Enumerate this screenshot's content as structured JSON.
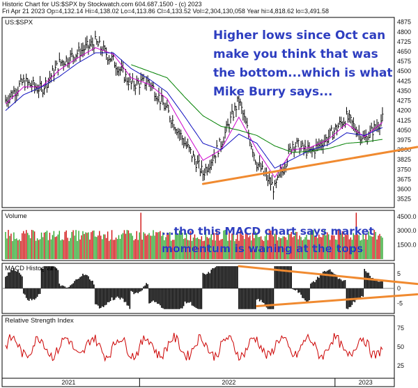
{
  "header": {
    "line1": "Historic Chart for US:$SPX by Stockwatch.com 604.687.1500 - (c) 2023",
    "line2": "Fri Apr 21 2023   Op=4,132.14   Hi=4,138.02   Lo=4,113.86   Cl=4,133.52   Vol=2,304,130,058   Year hi=4,818.62  lo=3,491.58"
  },
  "annotations": {
    "top": [
      "Higher lows since Oct can",
      "make you think that was",
      "the bottom...which is what",
      "Mike Burry says..."
    ],
    "bottom": [
      "...tho this MACD chart says market",
      "momentum is waning at the tops"
    ]
  },
  "colors": {
    "price_bar": "#000000",
    "ma_short": "#cc00cc",
    "ma_mid": "#1010c0",
    "ma_long": "#008000",
    "trendline": "#f08a30",
    "volume_up": "#2aa52a",
    "volume_down": "#d01010",
    "rsi": "#cc0000",
    "annotation": "#2e3ec0"
  },
  "chart_data": [
    {
      "type": "candlestick",
      "panel": "price",
      "title": "US:$SPX",
      "y_ticks": [
        4875,
        4800,
        4725,
        4650,
        4575,
        4500,
        4425,
        4350,
        4275,
        4200,
        4125,
        4050,
        3975,
        3900,
        3825,
        3750,
        3675,
        3600,
        3525
      ],
      "ylim": [
        3470,
        4900
      ],
      "x_ticks": [
        "2021",
        "2022",
        "2023"
      ],
      "series": [
        {
          "style": "price_bar",
          "x": [
            "2021-07",
            "2021-08",
            "2021-09",
            "2021-10",
            "2021-11",
            "2021-12",
            "2022-01",
            "2022-02",
            "2022-03",
            "2022-04",
            "2022-05",
            "2022-06",
            "2022-07",
            "2022-08",
            "2022-09",
            "2022-10",
            "2022-11",
            "2022-12",
            "2023-01",
            "2023-02",
            "2023-03",
            "2023-04"
          ],
          "values": [
            4280,
            4420,
            4360,
            4560,
            4640,
            4720,
            4580,
            4400,
            4420,
            4200,
            3950,
            3720,
            3950,
            4280,
            3800,
            3600,
            3950,
            3880,
            4000,
            4150,
            3980,
            4133
          ]
        },
        {
          "style": "ma_short",
          "values": [
            4250,
            4380,
            4380,
            4510,
            4600,
            4680,
            4630,
            4450,
            4400,
            4290,
            4050,
            3820,
            3900,
            4150,
            3900,
            3690,
            3900,
            3920,
            3980,
            4100,
            4000,
            4110
          ]
        },
        {
          "style": "ma_mid",
          "values": [
            4200,
            4320,
            4380,
            4460,
            4560,
            4640,
            4640,
            4520,
            4440,
            4340,
            4150,
            3950,
            3900,
            4020,
            3950,
            3760,
            3830,
            3900,
            3940,
            4030,
            4010,
            4070
          ]
        },
        {
          "style": "ma_long",
          "values": [
            null,
            null,
            null,
            null,
            null,
            null,
            null,
            4550,
            4500,
            4450,
            4300,
            4160,
            4080,
            4050,
            4010,
            3930,
            3880,
            3890,
            3910,
            3950,
            3960,
            3980
          ]
        }
      ],
      "trendline": {
        "from": {
          "x": "2022-06",
          "y": 3640
        },
        "to": {
          "x": "2023-04",
          "y": 3890
        }
      }
    },
    {
      "type": "bar",
      "panel": "volume",
      "title": "Volume",
      "y_ticks": [
        4500,
        3000,
        1500
      ],
      "note_ticks": [
        "4500.0",
        "3000.0",
        "1500.0"
      ]
    },
    {
      "type": "bar",
      "panel": "macd",
      "title": "MACD Histogram",
      "y_ticks": [
        5,
        0,
        -5
      ],
      "ylim": [
        -8,
        8
      ],
      "trendlines": [
        {
          "from": {
            "x": "2022-08",
            "y": 7.5
          },
          "to": {
            "x": "2023-04",
            "y": 1.5
          }
        },
        {
          "from": {
            "x": "2022-09",
            "y": -6
          },
          "to": {
            "x": "2023-04",
            "y": -2
          }
        }
      ]
    },
    {
      "type": "line",
      "panel": "rsi",
      "title": "Relative Strength Index",
      "y_ticks": [
        75,
        50,
        25
      ],
      "ylim": [
        10,
        90
      ]
    }
  ]
}
